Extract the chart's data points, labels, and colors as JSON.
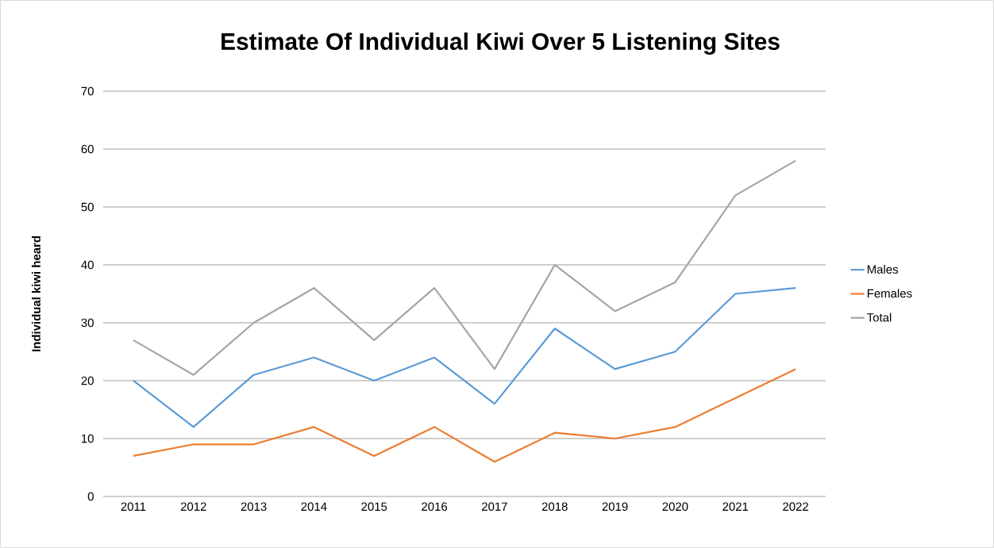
{
  "chart_data": {
    "type": "line",
    "title": "Estimate Of Individual Kiwi Over 5 Listening Sites",
    "ylabel": "Individual kiwi heard",
    "categories": [
      "2011",
      "2012",
      "2013",
      "2014",
      "2015",
      "2016",
      "2017",
      "2018",
      "2019",
      "2020",
      "2021",
      "2022"
    ],
    "series": [
      {
        "name": "Males",
        "color": "#5b9bd5",
        "values": [
          20,
          12,
          21,
          24,
          20,
          24,
          16,
          29,
          22,
          25,
          35,
          36
        ]
      },
      {
        "name": "Females",
        "color": "#ed7d31",
        "values": [
          7,
          9,
          9,
          12,
          7,
          12,
          6,
          11,
          10,
          12,
          17,
          22
        ]
      },
      {
        "name": "Total",
        "color": "#a5a5a5",
        "values": [
          27,
          21,
          30,
          36,
          27,
          36,
          22,
          40,
          32,
          37,
          52,
          58
        ]
      }
    ],
    "ylim": [
      0,
      70
    ],
    "yticks": [
      0,
      10,
      20,
      30,
      40,
      50,
      60,
      70
    ],
    "grid": "y",
    "legend": "right"
  }
}
